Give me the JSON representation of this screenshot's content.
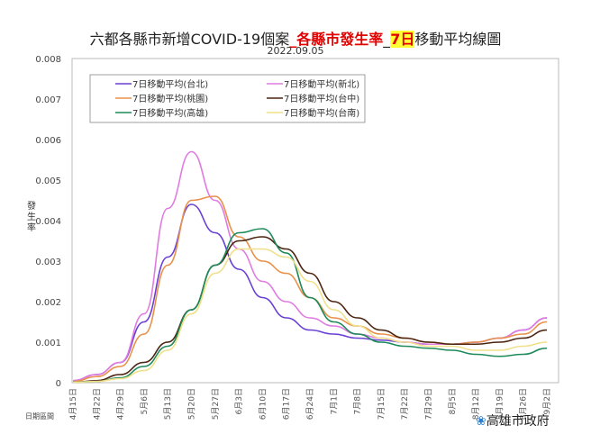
{
  "chart_data": {
    "type": "line",
    "title_parts": [
      "六都各縣市新增COVID-19個案",
      "_各縣市發生率",
      "_",
      "7日",
      "移動平均線圖"
    ],
    "subtitle": "2022.09.05",
    "ylabel": "發生率",
    "xlabel": "日期區間",
    "ylim": [
      0,
      0.008
    ],
    "yticks": [
      "0",
      "0.001",
      "0.002",
      "0.003",
      "0.004",
      "0.005",
      "0.006",
      "0.007",
      "0.008"
    ],
    "categories": [
      "4月15日",
      "4月22日",
      "4月29日",
      "5月6日",
      "5月13日",
      "5月20日",
      "5月27日",
      "6月3日",
      "6月10日",
      "6月17日",
      "6月24日",
      "7月1日",
      "7月8日",
      "7月15日",
      "7月22日",
      "7月29日",
      "8月5日",
      "8月12日",
      "8月19日",
      "8月26日",
      "9月2日"
    ],
    "legend_placement": "top-left",
    "grid": false,
    "series": [
      {
        "name": "7日移動平均(台北)",
        "color": "#6a3fd4",
        "values": [
          5e-05,
          0.0002,
          0.0005,
          0.0015,
          0.0031,
          0.0044,
          0.0037,
          0.0028,
          0.0021,
          0.0016,
          0.0013,
          0.0012,
          0.0011,
          0.00105,
          0.001,
          0.00095,
          0.00095,
          0.001,
          0.0011,
          0.0013,
          0.0016
        ]
      },
      {
        "name": "7日移動平均(新北)",
        "color": "#e07be0",
        "values": [
          5e-05,
          0.0002,
          0.0005,
          0.0017,
          0.0043,
          0.0057,
          0.0045,
          0.0033,
          0.0025,
          0.002,
          0.0016,
          0.0014,
          0.0012,
          0.0011,
          0.001,
          0.00095,
          0.00095,
          0.001,
          0.0011,
          0.0013,
          0.0016
        ]
      },
      {
        "name": "7日移動平均(桃園)",
        "color": "#e8914a",
        "values": [
          3e-05,
          0.00015,
          0.0004,
          0.0012,
          0.0029,
          0.0045,
          0.0046,
          0.0036,
          0.003,
          0.0027,
          0.0021,
          0.0016,
          0.0014,
          0.0012,
          0.0011,
          0.001,
          0.00095,
          0.001,
          0.0011,
          0.0012,
          0.0015
        ]
      },
      {
        "name": "7日移動平均(台中)",
        "color": "#4a2410",
        "values": [
          1e-05,
          5e-05,
          0.0002,
          0.0005,
          0.001,
          0.0018,
          0.0029,
          0.0035,
          0.0036,
          0.0033,
          0.0027,
          0.002,
          0.0016,
          0.0013,
          0.0011,
          0.001,
          0.00095,
          0.00095,
          0.001,
          0.0011,
          0.0013
        ]
      },
      {
        "name": "7日移動平均(高雄)",
        "color": "#1e8a5a",
        "values": [
          1e-05,
          3e-05,
          0.00012,
          0.0004,
          0.0009,
          0.0018,
          0.0029,
          0.0037,
          0.0038,
          0.0032,
          0.0021,
          0.0015,
          0.0012,
          0.001,
          0.0009,
          0.00085,
          0.0008,
          0.0007,
          0.00065,
          0.0007,
          0.00085
        ]
      },
      {
        "name": "7日移動平均(台南)",
        "color": "#f0e08a",
        "values": [
          1e-05,
          3e-05,
          0.0001,
          0.0003,
          0.0008,
          0.0017,
          0.0027,
          0.0033,
          0.0033,
          0.0031,
          0.0025,
          0.0018,
          0.0014,
          0.0011,
          0.001,
          0.0009,
          0.0009,
          0.0008,
          0.0008,
          0.0009,
          0.001
        ]
      }
    ]
  },
  "colors": {
    "title_red": "#e00000",
    "highlight": "#ffff33"
  },
  "logo": {
    "text": "高雄市政府",
    "icon": "kaohsiung-logo-icon"
  }
}
